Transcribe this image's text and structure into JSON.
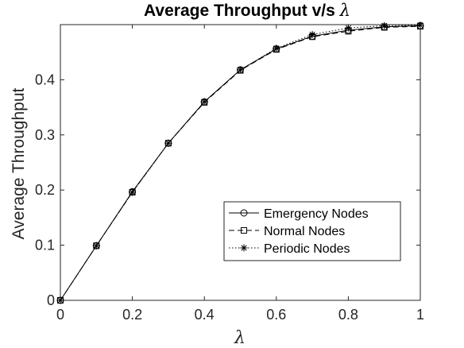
{
  "chart_data": {
    "type": "line",
    "title_prefix": "Average Throughput v/s ",
    "title_symbol": "λ",
    "xlabel": "λ",
    "ylabel": "Average Throughput",
    "xlim": [
      0,
      1
    ],
    "ylim": [
      0,
      0.5
    ],
    "xticks": [
      0,
      0.2,
      0.4,
      0.6,
      0.8,
      1
    ],
    "xtick_labels": [
      "0",
      "0.2",
      "0.4",
      "0.6",
      "0.8",
      "1"
    ],
    "yticks": [
      0,
      0.1,
      0.2,
      0.3,
      0.4
    ],
    "ytick_labels": [
      "0",
      "0.1",
      "0.2",
      "0.3",
      "0.4"
    ],
    "grid": false,
    "legend_position": "lower-right",
    "x": [
      0,
      0.1,
      0.2,
      0.3,
      0.4,
      0.5,
      0.6,
      0.7,
      0.8,
      0.9,
      1.0
    ],
    "series": [
      {
        "name": "Emergency Nodes",
        "line_style": "solid",
        "marker": "circle",
        "color": "#000000",
        "values": [
          0,
          0.099,
          0.197,
          0.285,
          0.36,
          0.418,
          0.456,
          0.479,
          0.49,
          0.496,
          0.498
        ]
      },
      {
        "name": "Normal Nodes",
        "line_style": "dashed",
        "marker": "square",
        "color": "#000000",
        "values": [
          0,
          0.099,
          0.196,
          0.285,
          0.359,
          0.417,
          0.455,
          0.478,
          0.488,
          0.495,
          0.497
        ]
      },
      {
        "name": "Periodic Nodes",
        "line_style": "dotted",
        "marker": "asterisk",
        "color": "#000000",
        "values": [
          0,
          0.099,
          0.196,
          0.285,
          0.36,
          0.418,
          0.457,
          0.482,
          0.494,
          0.498,
          0.499
        ]
      }
    ]
  }
}
